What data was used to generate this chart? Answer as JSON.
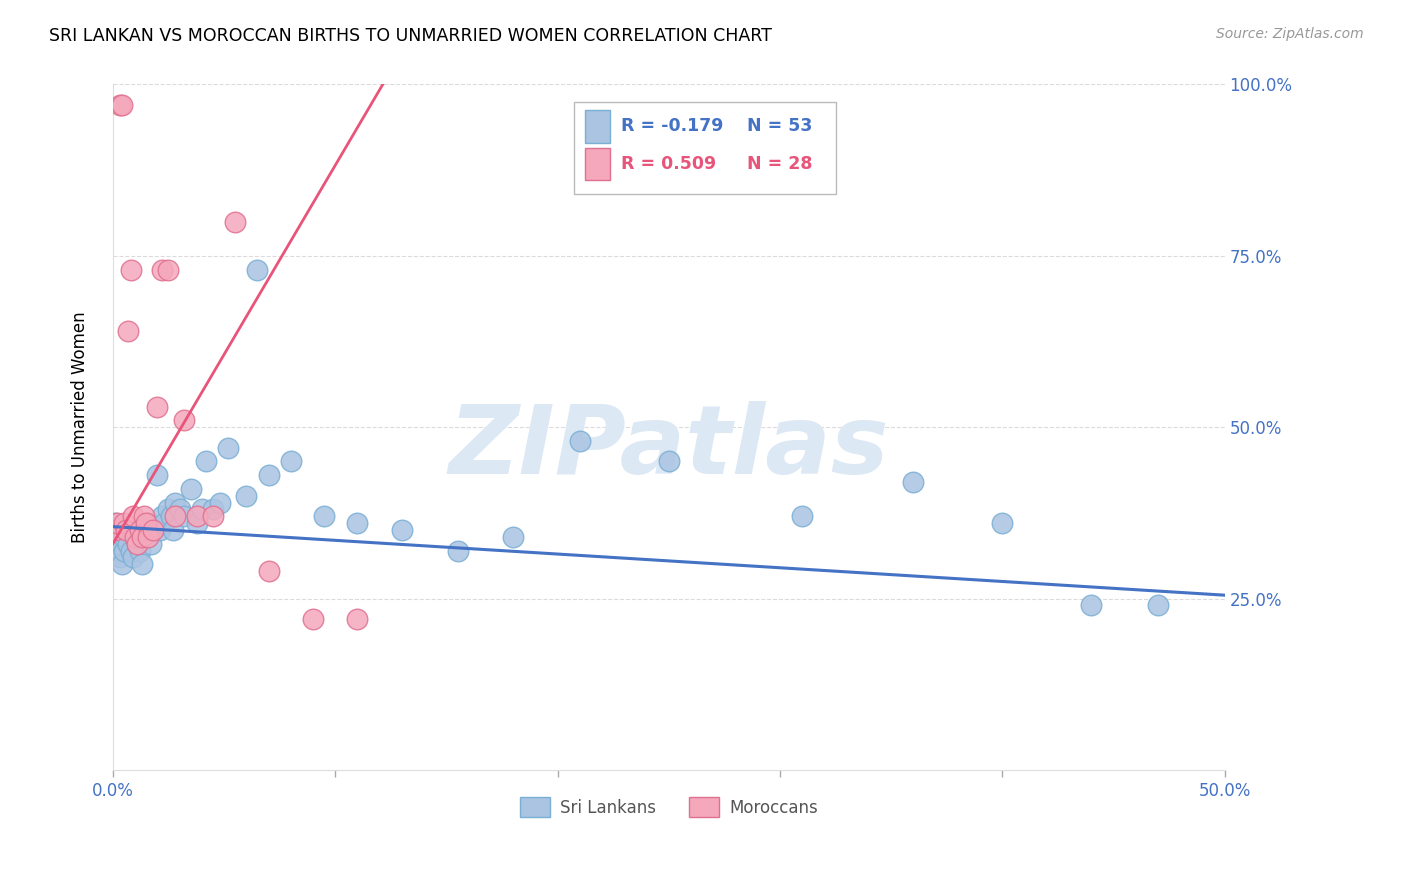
{
  "title": "SRI LANKAN VS MOROCCAN BIRTHS TO UNMARRIED WOMEN CORRELATION CHART",
  "source": "Source: ZipAtlas.com",
  "ylabel": "Births to Unmarried Women",
  "xmin": 0.0,
  "xmax": 0.5,
  "ymin": 0.0,
  "ymax": 1.0,
  "yticks": [
    0.25,
    0.5,
    0.75,
    1.0
  ],
  "ytick_labels": [
    "25.0%",
    "50.0%",
    "75.0%",
    "100.0%"
  ],
  "sri_lankan_color": "#aac4e2",
  "sri_lankan_edge": "#7aafd4",
  "moroccan_color": "#f5a8bc",
  "moroccan_edge": "#e07090",
  "trend_blue": "#4472c4",
  "trend_pink": "#e8547a",
  "legend_blue_R": "R = -0.179",
  "legend_blue_N": "N = 53",
  "legend_pink_R": "R = 0.509",
  "legend_pink_N": "N = 28",
  "background_color": "#ffffff",
  "grid_color": "#cccccc",
  "tick_color": "#4472c4",
  "watermark": "ZIPatlas",
  "watermark_color": "#dde8f5",
  "sri_lankans_x": [
    0.001,
    0.002,
    0.003,
    0.003,
    0.004,
    0.005,
    0.005,
    0.006,
    0.007,
    0.008,
    0.009,
    0.01,
    0.011,
    0.012,
    0.013,
    0.014,
    0.015,
    0.016,
    0.017,
    0.018,
    0.02,
    0.021,
    0.022,
    0.023,
    0.025,
    0.026,
    0.027,
    0.028,
    0.03,
    0.032,
    0.035,
    0.038,
    0.04,
    0.042,
    0.045,
    0.048,
    0.052,
    0.06,
    0.065,
    0.07,
    0.08,
    0.095,
    0.11,
    0.13,
    0.155,
    0.18,
    0.21,
    0.25,
    0.31,
    0.36,
    0.4,
    0.44,
    0.47
  ],
  "sri_lankans_y": [
    0.36,
    0.34,
    0.33,
    0.31,
    0.3,
    0.32,
    0.34,
    0.35,
    0.33,
    0.32,
    0.31,
    0.34,
    0.33,
    0.32,
    0.3,
    0.35,
    0.34,
    0.36,
    0.33,
    0.35,
    0.43,
    0.35,
    0.37,
    0.36,
    0.38,
    0.37,
    0.35,
    0.39,
    0.38,
    0.37,
    0.41,
    0.36,
    0.38,
    0.45,
    0.38,
    0.39,
    0.47,
    0.4,
    0.73,
    0.43,
    0.45,
    0.37,
    0.36,
    0.35,
    0.32,
    0.34,
    0.48,
    0.45,
    0.37,
    0.42,
    0.36,
    0.24,
    0.24
  ],
  "moroccans_x": [
    0.001,
    0.002,
    0.003,
    0.004,
    0.005,
    0.006,
    0.007,
    0.008,
    0.009,
    0.01,
    0.011,
    0.012,
    0.013,
    0.014,
    0.015,
    0.016,
    0.018,
    0.02,
    0.022,
    0.025,
    0.028,
    0.032,
    0.038,
    0.045,
    0.055,
    0.07,
    0.09,
    0.11
  ],
  "moroccans_y": [
    0.35,
    0.36,
    0.97,
    0.97,
    0.36,
    0.35,
    0.64,
    0.73,
    0.37,
    0.34,
    0.33,
    0.35,
    0.34,
    0.37,
    0.36,
    0.34,
    0.35,
    0.53,
    0.73,
    0.73,
    0.37,
    0.51,
    0.37,
    0.37,
    0.8,
    0.29,
    0.22,
    0.22
  ],
  "blue_trend_x": [
    0.0,
    0.5
  ],
  "blue_trend_y": [
    0.355,
    0.255
  ],
  "pink_trend_x": [
    0.0,
    0.125
  ],
  "pink_trend_y": [
    0.33,
    1.02
  ]
}
